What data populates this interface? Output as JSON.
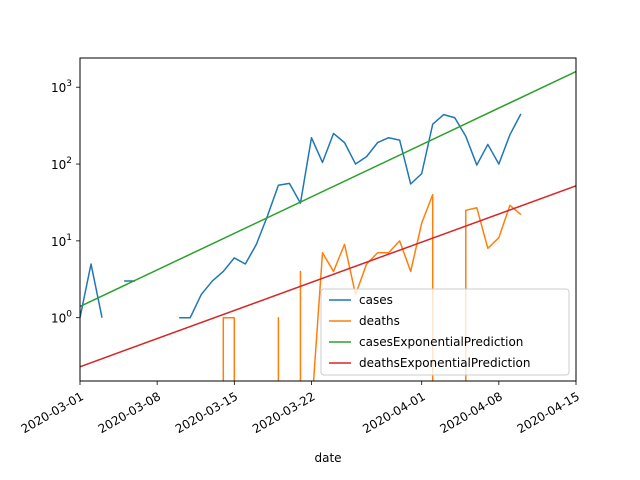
{
  "chart_data": {
    "type": "line",
    "xlabel": "date",
    "ylabel": "",
    "yscale": "log",
    "xlim": [
      "2020-03-01",
      "2020-04-15"
    ],
    "ylim": [
      0.15,
      2400
    ],
    "legend_position": "lower-right",
    "grid": false,
    "x_ticks": [
      "2020-03-01",
      "2020-03-08",
      "2020-03-15",
      "2020-03-22",
      "2020-04-01",
      "2020-04-08",
      "2020-04-15"
    ],
    "y_ticks": [
      {
        "value": 1,
        "base": "10",
        "exp": "0"
      },
      {
        "value": 10,
        "base": "10",
        "exp": "1"
      },
      {
        "value": 100,
        "base": "10",
        "exp": "2"
      },
      {
        "value": 1000,
        "base": "10",
        "exp": "3"
      }
    ],
    "series": [
      {
        "name": "cases",
        "color": "#1f77b4",
        "points": [
          [
            "2020-03-01",
            1
          ],
          [
            "2020-03-02",
            5
          ],
          [
            "2020-03-03",
            1
          ],
          null,
          [
            "2020-03-05",
            3
          ],
          [
            "2020-03-06",
            3
          ],
          null,
          [
            "2020-03-10",
            1
          ],
          [
            "2020-03-11",
            1
          ],
          [
            "2020-03-12",
            2
          ],
          [
            "2020-03-13",
            3
          ],
          [
            "2020-03-14",
            4
          ],
          [
            "2020-03-15",
            6
          ],
          [
            "2020-03-16",
            5
          ],
          [
            "2020-03-17",
            9
          ],
          [
            "2020-03-18",
            21
          ],
          [
            "2020-03-19",
            53
          ],
          [
            "2020-03-20",
            56
          ],
          [
            "2020-03-21",
            31
          ],
          [
            "2020-03-22",
            220
          ],
          [
            "2020-03-23",
            105
          ],
          [
            "2020-03-24",
            250
          ],
          [
            "2020-03-25",
            190
          ],
          [
            "2020-03-26",
            100
          ],
          [
            "2020-03-27",
            125
          ],
          [
            "2020-03-28",
            190
          ],
          [
            "2020-03-29",
            220
          ],
          [
            "2020-03-30",
            205
          ],
          [
            "2020-03-31",
            55
          ],
          [
            "2020-04-01",
            75
          ],
          [
            "2020-04-02",
            330
          ],
          [
            "2020-04-03",
            440
          ],
          [
            "2020-04-04",
            400
          ],
          [
            "2020-04-05",
            230
          ],
          [
            "2020-04-06",
            97
          ],
          [
            "2020-04-07",
            180
          ],
          [
            "2020-04-08",
            100
          ],
          [
            "2020-04-09",
            240
          ],
          [
            "2020-04-10",
            450
          ]
        ]
      },
      {
        "name": "deaths",
        "color": "#ff7f0e",
        "points": [
          [
            "2020-03-14",
            0.01
          ],
          [
            "2020-03-14",
            1
          ],
          [
            "2020-03-15",
            1
          ],
          [
            "2020-03-15",
            0.01
          ],
          null,
          [
            "2020-03-19",
            0.01
          ],
          [
            "2020-03-19",
            1
          ],
          [
            "2020-03-19",
            0.01
          ],
          null,
          [
            "2020-03-21",
            0.01
          ],
          [
            "2020-03-21",
            4
          ],
          [
            "2020-03-21",
            0.01
          ],
          null,
          [
            "2020-03-22",
            0.01
          ],
          [
            "2020-03-23",
            7
          ],
          [
            "2020-03-24",
            4
          ],
          [
            "2020-03-25",
            9
          ],
          [
            "2020-03-26",
            2
          ],
          [
            "2020-03-27",
            5
          ],
          [
            "2020-03-28",
            7
          ],
          [
            "2020-03-29",
            7
          ],
          [
            "2020-03-30",
            10
          ],
          [
            "2020-03-31",
            4
          ],
          [
            "2020-04-01",
            17
          ],
          [
            "2020-04-02",
            40
          ],
          [
            "2020-04-02",
            0.01
          ],
          null,
          [
            "2020-04-05",
            0.01
          ],
          [
            "2020-04-05",
            25
          ],
          [
            "2020-04-06",
            27
          ],
          [
            "2020-04-07",
            8
          ],
          [
            "2020-04-08",
            11
          ],
          [
            "2020-04-09",
            29
          ],
          [
            "2020-04-10",
            22
          ]
        ]
      },
      {
        "name": "casesExponentialPrediction",
        "color": "#2ca02c",
        "points": [
          [
            "2020-03-01",
            1.4
          ],
          [
            "2020-04-15",
            1600
          ]
        ]
      },
      {
        "name": "deathsExponentialPrediction",
        "color": "#d62728",
        "points": [
          [
            "2020-03-01",
            0.23
          ],
          [
            "2020-04-15",
            52
          ]
        ]
      }
    ]
  }
}
